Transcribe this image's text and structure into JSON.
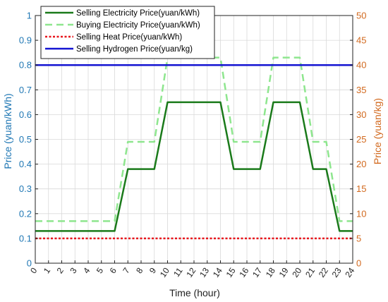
{
  "chart_data": {
    "type": "line",
    "title": "",
    "xlabel": "Time (hour)",
    "ylabel_left": "Price (yuan/kWh)",
    "ylabel_right": "Price (yuan/kg)",
    "x": [
      0,
      1,
      2,
      3,
      4,
      5,
      6,
      7,
      8,
      9,
      10,
      11,
      12,
      13,
      14,
      15,
      16,
      17,
      18,
      19,
      20,
      21,
      22,
      23,
      24
    ],
    "x_ticks": [
      "0",
      "1",
      "2",
      "3",
      "4",
      "5",
      "6",
      "7",
      "8",
      "9",
      "10",
      "11",
      "12",
      "13",
      "14",
      "15",
      "16",
      "17",
      "18",
      "19",
      "20",
      "21",
      "22",
      "23",
      "24"
    ],
    "ylim_left": [
      0,
      1
    ],
    "yticks_left": [
      "0",
      "0.1",
      "0.2",
      "0.3",
      "0.4",
      "0.5",
      "0.6",
      "0.7",
      "0.8",
      "0.9",
      "1"
    ],
    "ylim_right": [
      0,
      50
    ],
    "yticks_right": [
      "0",
      "5",
      "10",
      "15",
      "20",
      "25",
      "30",
      "35",
      "40",
      "45",
      "50"
    ],
    "grid": true,
    "legend_position": "top-left",
    "series": [
      {
        "name": "Selling Electricity Price(yuan/kWh)",
        "axis": "left",
        "color": "#1a7a1a",
        "style": "solid",
        "x": [
          0,
          6,
          7,
          9,
          10,
          14,
          15,
          17,
          18,
          20,
          21,
          22,
          23,
          24
        ],
        "y": [
          0.13,
          0.13,
          0.38,
          0.38,
          0.65,
          0.65,
          0.38,
          0.38,
          0.65,
          0.65,
          0.38,
          0.38,
          0.13,
          0.13
        ]
      },
      {
        "name": "Buying Electricity Price(yuan/kWh)",
        "axis": "left",
        "color": "#8ee68e",
        "style": "dashed",
        "x": [
          0,
          6,
          7,
          9,
          10,
          14,
          15,
          17,
          18,
          20,
          21,
          22,
          23,
          24
        ],
        "y": [
          0.17,
          0.17,
          0.49,
          0.49,
          0.83,
          0.83,
          0.49,
          0.49,
          0.83,
          0.83,
          0.49,
          0.49,
          0.17,
          0.17
        ]
      },
      {
        "name": "Selling Heat Price(yuan/kWh)",
        "axis": "left",
        "color": "#e8141c",
        "style": "dotted",
        "x": [
          0,
          24
        ],
        "y": [
          0.1,
          0.1
        ]
      },
      {
        "name": "Selling Hydrogen Price(yuan/kg)",
        "axis": "left",
        "color": "#1414d2",
        "style": "solid",
        "x": [
          0,
          24
        ],
        "y": [
          0.8,
          0.8
        ]
      }
    ],
    "colors": {
      "left_axis": "#1f77b4",
      "right_axis": "#d2691e",
      "grid": "#d9d9d9"
    }
  }
}
